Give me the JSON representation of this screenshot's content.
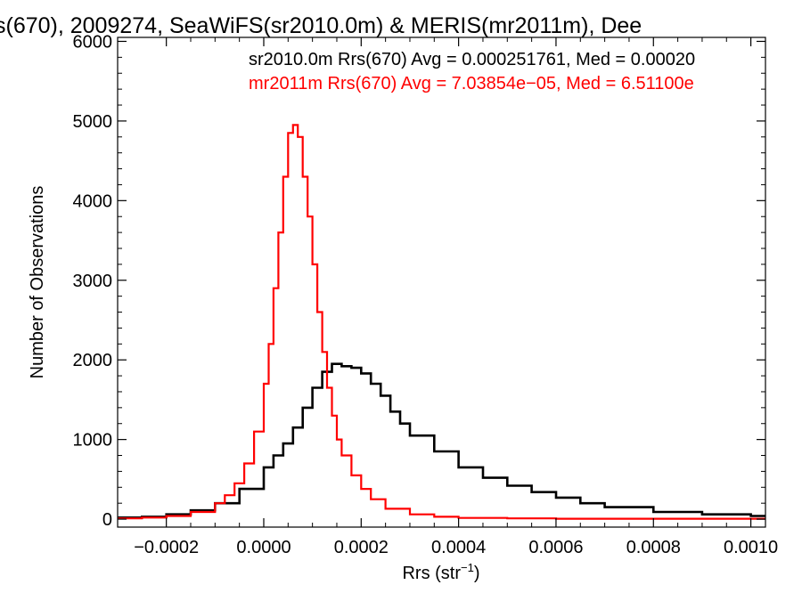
{
  "chart_data": {
    "type": "line",
    "title": "s(670), 2009274, SeaWiFS(sr2010.0m) & MERIS(mr2011m), Dee",
    "xlabel": "Rrs (str",
    "xlabel_sup": "−1",
    "xlabel_end": ")",
    "ylabel": "Number of Observations",
    "xlim": [
      -0.0003,
      0.00103
    ],
    "ylim": [
      -100,
      6050
    ],
    "xticks": [
      -0.0002,
      0.0,
      0.0002,
      0.0004,
      0.0006,
      0.0008,
      0.001
    ],
    "xtick_labels": [
      "−0.0002",
      "0.0000",
      "0.0002",
      "0.0004",
      "0.0006",
      "0.0008",
      "0.0010"
    ],
    "yticks": [
      0,
      1000,
      2000,
      3000,
      4000,
      5000,
      6000
    ],
    "ytick_labels": [
      "0",
      "1000",
      "2000",
      "3000",
      "4000",
      "5000",
      "6000"
    ],
    "grid": false,
    "legend_position": "top-right",
    "series": [
      {
        "name": "sr2010.0m Rrs(670) Avg = 0.000251761, Med = 0.00020",
        "color": "#000000",
        "style": "step",
        "x": [
          -0.0003,
          -0.00025,
          -0.0002,
          -0.00015,
          -0.0001,
          -5e-05,
          0.0,
          2e-05,
          4e-05,
          6e-05,
          8e-05,
          0.0001,
          0.00012,
          0.00014,
          0.00016,
          0.00018,
          0.0002,
          0.00022,
          0.00024,
          0.00026,
          0.00028,
          0.0003,
          0.00035,
          0.0004,
          0.00045,
          0.0005,
          0.00055,
          0.0006,
          0.00065,
          0.0007,
          0.0008,
          0.0009,
          0.001
        ],
        "y": [
          20,
          30,
          60,
          110,
          200,
          380,
          650,
          800,
          950,
          1150,
          1400,
          1650,
          1850,
          1950,
          1920,
          1900,
          1830,
          1700,
          1550,
          1350,
          1200,
          1050,
          850,
          650,
          520,
          420,
          340,
          270,
          200,
          150,
          90,
          60,
          40
        ]
      },
      {
        "name": "mr2011m Rrs(670) Avg = 7.03854e−05, Med = 6.51100e",
        "color": "#ff0000",
        "style": "step",
        "x": [
          -0.0003,
          -0.00025,
          -0.0002,
          -0.00015,
          -0.0001,
          -8e-05,
          -6e-05,
          -4e-05,
          -2e-05,
          0.0,
          1e-05,
          2e-05,
          3e-05,
          4e-05,
          5e-05,
          6e-05,
          7e-05,
          8e-05,
          9e-05,
          0.0001,
          0.00011,
          0.00012,
          0.00013,
          0.00014,
          0.00015,
          0.00016,
          0.00018,
          0.0002,
          0.00022,
          0.00025,
          0.0003,
          0.00035,
          0.0004,
          0.0005,
          0.0006,
          0.0007,
          0.0008,
          0.0009,
          0.001
        ],
        "y": [
          10,
          20,
          40,
          90,
          200,
          300,
          450,
          700,
          1100,
          1700,
          2200,
          2900,
          3600,
          4300,
          4850,
          4950,
          4800,
          4300,
          3800,
          3200,
          2600,
          2100,
          1650,
          1300,
          1000,
          800,
          550,
          380,
          250,
          130,
          60,
          30,
          15,
          10,
          5,
          5,
          5,
          5,
          5
        ]
      }
    ]
  }
}
